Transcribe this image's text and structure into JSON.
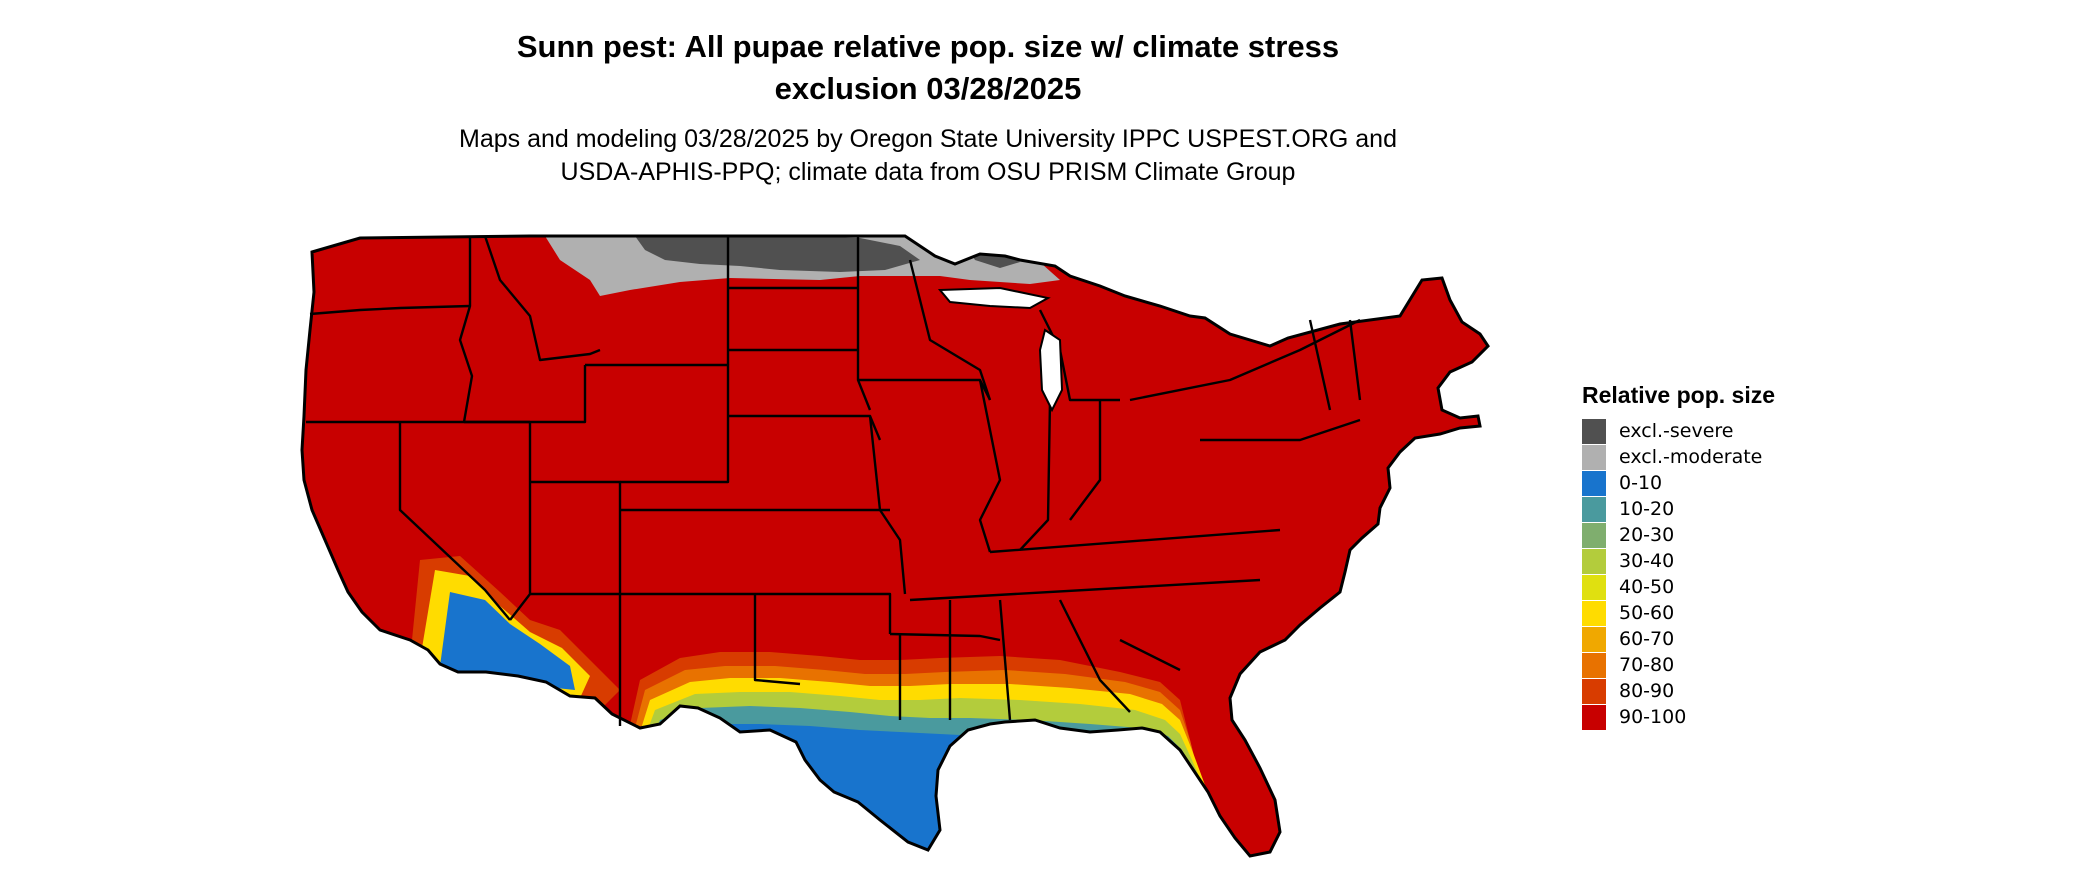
{
  "title": {
    "line1": "Sunn pest: All pupae relative pop. size w/ climate stress",
    "line2": "exclusion 03/28/2025"
  },
  "subtitle": {
    "line1": "Maps and modeling 03/28/2025 by Oregon State University IPPC USPEST.ORG and",
    "line2": "USDA-APHIS-PPQ; climate data from OSU PRISM Climate Group"
  },
  "map": {
    "region": "Contiguous United States",
    "base_color": "#c80000",
    "border_color": "#000000"
  },
  "legend": {
    "title": "Relative pop. size",
    "items": [
      {
        "label": "excl.-severe",
        "color": "#505050"
      },
      {
        "label": "excl.-moderate",
        "color": "#b0b0b0"
      },
      {
        "label": "0-10",
        "color": "#1874cd"
      },
      {
        "label": "10-20",
        "color": "#4a9a9e"
      },
      {
        "label": "20-30",
        "color": "#7fae6e"
      },
      {
        "label": "30-40",
        "color": "#b3cc3c"
      },
      {
        "label": "40-50",
        "color": "#e0e010"
      },
      {
        "label": "50-60",
        "color": "#ffdc00"
      },
      {
        "label": "60-70",
        "color": "#f0a800"
      },
      {
        "label": "70-80",
        "color": "#e87200"
      },
      {
        "label": "80-90",
        "color": "#d83c00"
      },
      {
        "label": "90-100",
        "color": "#c80000"
      }
    ]
  }
}
